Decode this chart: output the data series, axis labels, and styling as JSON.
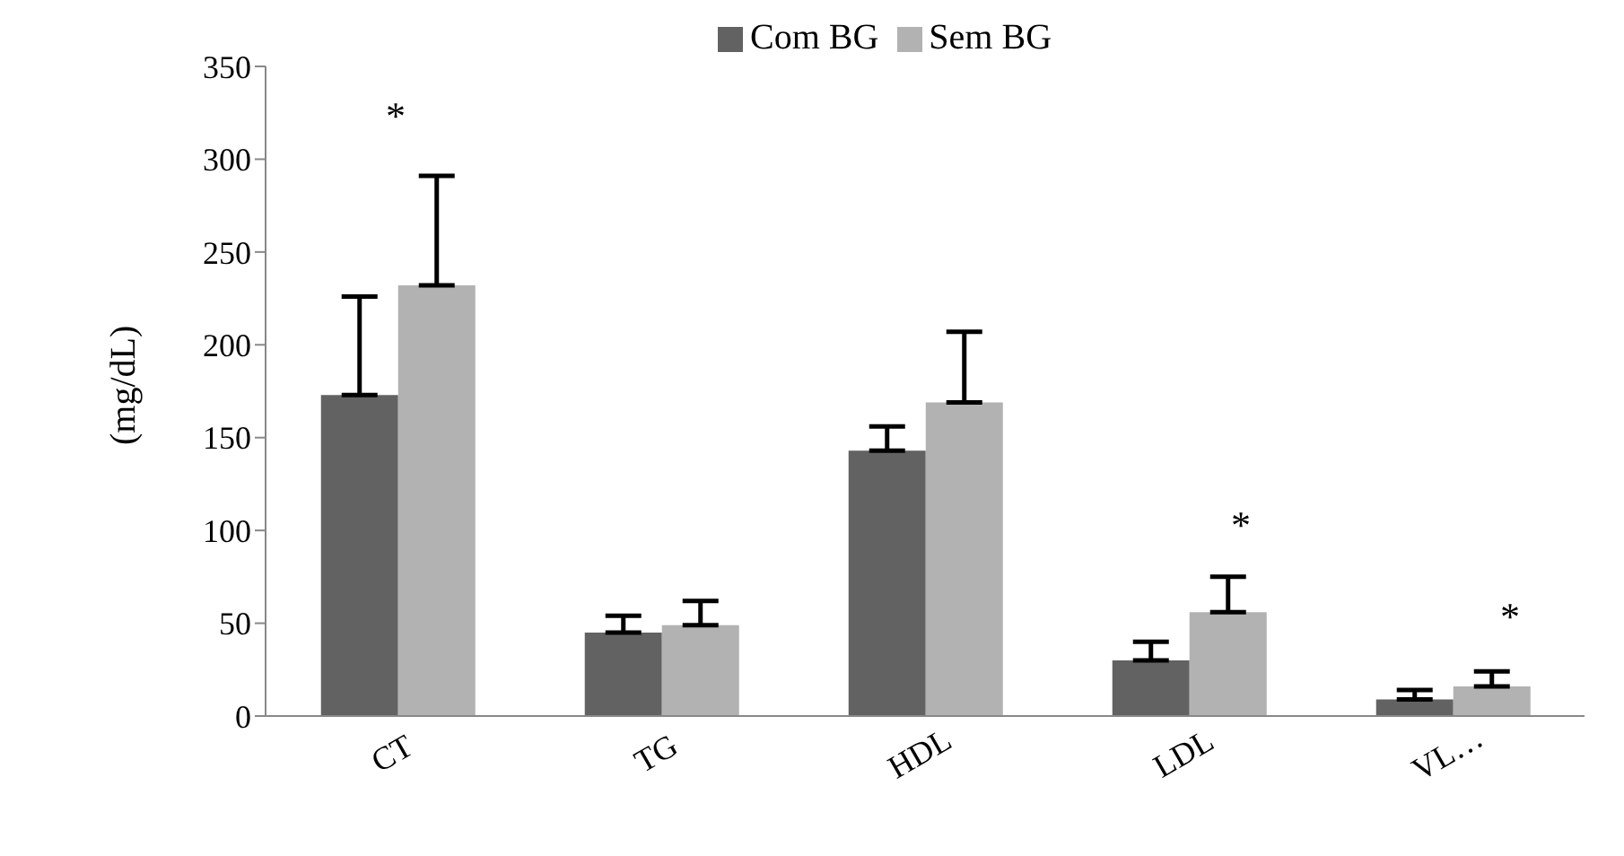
{
  "chart_data": {
    "type": "bar",
    "ylabel": "(mg/dL)",
    "categories": [
      "CT",
      "TG",
      "HDL",
      "LDL",
      "VL…"
    ],
    "series": [
      {
        "name": "Com BG",
        "color": "#626262",
        "values": [
          173,
          45,
          143,
          30,
          9
        ],
        "errors": [
          [
            173,
            226
          ],
          [
            45,
            54
          ],
          [
            143,
            156
          ],
          [
            30,
            40
          ],
          [
            9,
            14
          ]
        ]
      },
      {
        "name": "Sem BG",
        "color": "#b2b2b2",
        "values": [
          232,
          49,
          169,
          56,
          16
        ],
        "errors": [
          [
            232,
            291
          ],
          [
            49,
            62
          ],
          [
            169,
            207
          ],
          [
            56,
            75
          ],
          [
            16,
            24
          ]
        ]
      }
    ],
    "ylim": [
      0,
      350
    ],
    "yticks": [
      0,
      50,
      100,
      150,
      200,
      250,
      300,
      350
    ],
    "grid": false,
    "legend": "top",
    "annotations": [
      "*",
      "*",
      "*"
    ]
  }
}
